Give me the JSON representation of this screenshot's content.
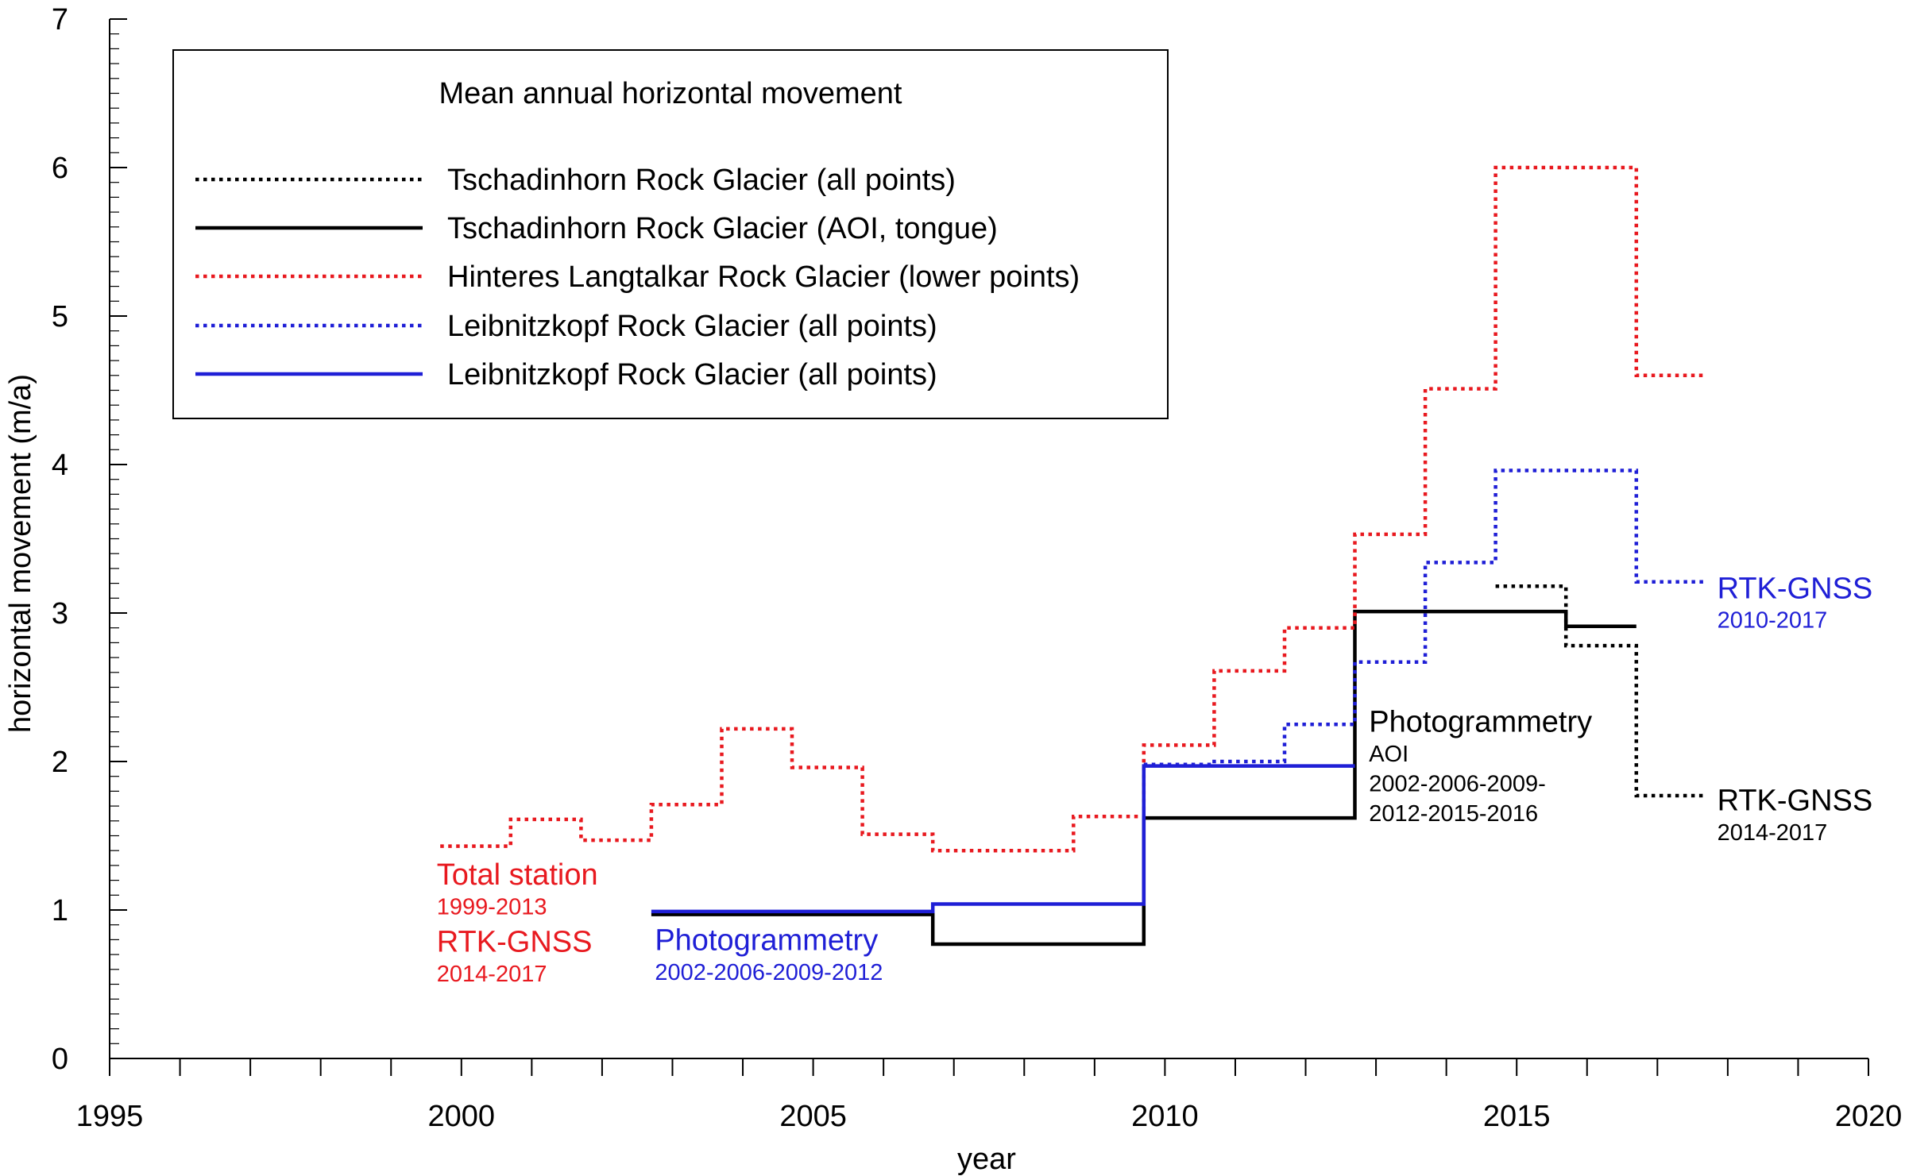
{
  "chart_data": {
    "type": "line",
    "title": "",
    "xlabel": "year",
    "ylabel": "horizontal movement (m/a)",
    "xlim": [
      1995,
      2020
    ],
    "ylim": [
      0,
      7
    ],
    "x_ticks": [
      1995,
      2000,
      2005,
      2010,
      2015,
      2020
    ],
    "y_ticks": [
      0,
      1,
      2,
      3,
      4,
      5,
      6,
      7
    ],
    "grid": false,
    "legend_position": "top-left",
    "legend_title": "Mean annual horizontal movement",
    "series": [
      {
        "name": "Tschadinhorn Rock Glacier (all points)",
        "color": "#000000",
        "style": "dotted",
        "step": true,
        "x": [
          2014.7,
          2015.7,
          2015.7,
          2016.7,
          2016.7,
          2017.7
        ],
        "y": [
          3.18,
          3.18,
          2.78,
          2.78,
          1.77,
          1.77
        ]
      },
      {
        "name": "Tschadinhorn Rock Glacier (AOI, tongue)",
        "color": "#000000",
        "style": "solid",
        "step": true,
        "x": [
          2002.7,
          2006.7,
          2006.7,
          2009.7,
          2009.7,
          2012.7,
          2012.7,
          2015.7,
          2015.7,
          2016.7
        ],
        "y": [
          0.97,
          0.97,
          0.77,
          0.77,
          1.62,
          1.62,
          3.01,
          3.01,
          2.91,
          2.91
        ]
      },
      {
        "name": "Hinteres Langtalkar Rock Glacier (lower points)",
        "color": "#e8191f",
        "style": "dotted",
        "step": true,
        "x": [
          1999.7,
          2000.7,
          2000.7,
          2001.7,
          2001.7,
          2002.7,
          2002.7,
          2003.7,
          2003.7,
          2004.7,
          2004.7,
          2005.7,
          2005.7,
          2006.7,
          2006.7,
          2008.7,
          2008.7,
          2009.7,
          2009.7,
          2010.7,
          2010.7,
          2011.7,
          2011.7,
          2012.7,
          2012.7,
          2013.7,
          2013.7,
          2014.7,
          2014.7,
          2016.7,
          2016.7,
          2017.7
        ],
        "y": [
          1.43,
          1.43,
          1.61,
          1.61,
          1.47,
          1.47,
          1.71,
          1.71,
          2.22,
          2.22,
          1.96,
          1.96,
          1.51,
          1.51,
          1.4,
          1.4,
          1.63,
          1.63,
          2.11,
          2.11,
          2.61,
          2.61,
          2.9,
          2.9,
          3.53,
          3.53,
          4.51,
          4.51,
          6.0,
          6.0,
          4.6,
          4.6
        ]
      },
      {
        "name": "Leibnitzkopf Rock Glacier (all points)",
        "color": "#1f1fd6",
        "style": "dotted",
        "step": true,
        "x": [
          2009.7,
          2010.7,
          2010.7,
          2011.7,
          2011.7,
          2012.7,
          2012.7,
          2013.7,
          2013.7,
          2014.7,
          2014.7,
          2016.7,
          2016.7,
          2017.7
        ],
        "y": [
          1.98,
          1.98,
          2.0,
          2.0,
          2.25,
          2.25,
          2.67,
          2.67,
          3.34,
          3.34,
          3.96,
          3.96,
          3.21,
          3.21
        ]
      },
      {
        "name": "Leibnitzkopf Rock Glacier (all points)",
        "color": "#1f1fd6",
        "style": "solid",
        "step": true,
        "x": [
          2002.7,
          2006.7,
          2006.7,
          2009.7,
          2009.7,
          2012.7
        ],
        "y": [
          0.99,
          0.99,
          1.04,
          1.04,
          1.97,
          1.97
        ]
      }
    ],
    "annotations": [
      {
        "id": "ts",
        "text": "Total station",
        "x": 1999.65,
        "y": 1.17,
        "color": "#e8191f",
        "size": "large"
      },
      {
        "id": "ts_yr",
        "text": "1999-2013",
        "x": 1999.65,
        "y": 0.97,
        "color": "#e8191f",
        "size": "small"
      },
      {
        "id": "rtk_red",
        "text": "RTK-GNSS",
        "x": 1999.65,
        "y": 0.72,
        "color": "#e8191f",
        "size": "large"
      },
      {
        "id": "rtk_red_yr",
        "text": "2014-2017",
        "x": 1999.65,
        "y": 0.52,
        "color": "#e8191f",
        "size": "small"
      },
      {
        "id": "photo_blue",
        "text": "Photogrammetry",
        "x": 2002.75,
        "y": 0.73,
        "color": "#1f1fd6",
        "size": "large"
      },
      {
        "id": "photo_blue_yr",
        "text": "2002-2006-2009-2012",
        "x": 2002.75,
        "y": 0.53,
        "color": "#1f1fd6",
        "size": "small"
      },
      {
        "id": "photo_black",
        "text": "Photogrammetry",
        "x": 2012.9,
        "y": 2.2,
        "color": "#000000",
        "size": "large"
      },
      {
        "id": "photo_black_aoi",
        "text": "AOI",
        "x": 2012.9,
        "y": 2.0,
        "color": "#000000",
        "size": "small"
      },
      {
        "id": "photo_black_yr1",
        "text": "2002-2006-2009-",
        "x": 2012.9,
        "y": 1.8,
        "color": "#000000",
        "size": "small"
      },
      {
        "id": "photo_black_yr2",
        "text": "2012-2015-2016",
        "x": 2012.9,
        "y": 1.6,
        "color": "#000000",
        "size": "small"
      },
      {
        "id": "rtk_blue",
        "text": "RTK-GNSS",
        "x": 2017.85,
        "y": 3.1,
        "color": "#1f1fd6",
        "size": "large"
      },
      {
        "id": "rtk_blue_yr",
        "text": "2010-2017",
        "x": 2017.85,
        "y": 2.9,
        "color": "#1f1fd6",
        "size": "small"
      },
      {
        "id": "rtk_black",
        "text": "RTK-GNSS",
        "x": 2017.85,
        "y": 1.67,
        "color": "#000000",
        "size": "large"
      },
      {
        "id": "rtk_black_yr",
        "text": "2014-2017",
        "x": 2017.85,
        "y": 1.47,
        "color": "#000000",
        "size": "small"
      }
    ]
  }
}
